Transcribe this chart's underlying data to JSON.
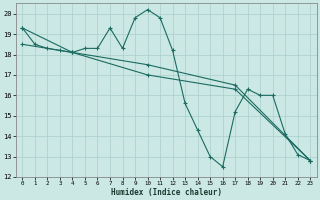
{
  "xlabel": "Humidex (Indice chaleur)",
  "bg_color": "#cce8e5",
  "grid_color": "#aacfcb",
  "line_color": "#1a6b60",
  "xlim": [
    -0.5,
    23.5
  ],
  "ylim": [
    12,
    20.5
  ],
  "yticks": [
    12,
    13,
    14,
    15,
    16,
    17,
    18,
    19,
    20
  ],
  "xticks": [
    0,
    1,
    2,
    3,
    4,
    5,
    6,
    7,
    8,
    9,
    10,
    11,
    12,
    13,
    14,
    15,
    16,
    17,
    18,
    19,
    20,
    21,
    22,
    23
  ],
  "series1": [
    [
      0,
      19.3
    ],
    [
      1,
      18.5
    ],
    [
      2,
      18.3
    ],
    [
      3,
      18.2
    ],
    [
      4,
      18.1
    ],
    [
      5,
      18.3
    ],
    [
      6,
      18.3
    ],
    [
      7,
      19.3
    ],
    [
      8,
      18.3
    ],
    [
      9,
      19.8
    ],
    [
      10,
      20.2
    ],
    [
      11,
      19.8
    ],
    [
      12,
      18.2
    ],
    [
      13,
      15.6
    ],
    [
      14,
      14.3
    ],
    [
      15,
      13.0
    ],
    [
      16,
      12.5
    ],
    [
      17,
      15.2
    ],
    [
      18,
      16.3
    ],
    [
      19,
      16.0
    ],
    [
      20,
      16.0
    ],
    [
      21,
      14.1
    ],
    [
      22,
      13.1
    ],
    [
      23,
      12.8
    ]
  ],
  "series2": [
    [
      0,
      19.3
    ],
    [
      4,
      18.1
    ],
    [
      10,
      17.5
    ],
    [
      17,
      16.5
    ],
    [
      23,
      12.8
    ]
  ],
  "series3": [
    [
      0,
      18.5
    ],
    [
      4,
      18.1
    ],
    [
      10,
      17.0
    ],
    [
      17,
      16.3
    ],
    [
      23,
      12.8
    ]
  ]
}
